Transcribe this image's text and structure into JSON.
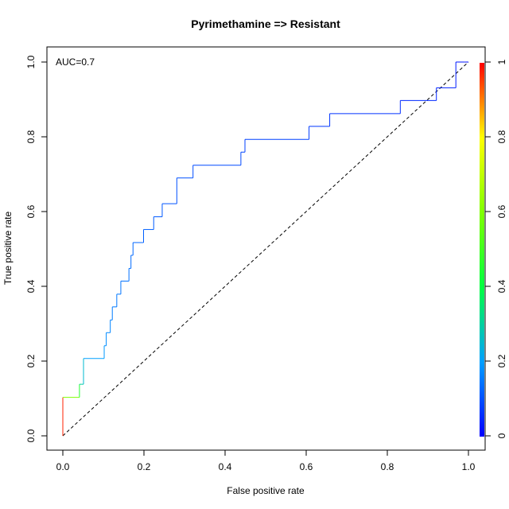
{
  "chart_data": {
    "type": "line",
    "title": "Pyrimethamine => Resistant",
    "xlabel": "False positive rate",
    "ylabel": "True positive rate",
    "xlim": [
      0,
      1
    ],
    "ylim": [
      0,
      1
    ],
    "x_ticks": [
      "0.0",
      "0.2",
      "0.4",
      "0.6",
      "0.8",
      "1.0"
    ],
    "y_ticks": [
      "0.0",
      "0.2",
      "0.4",
      "0.6",
      "0.8",
      "1.0"
    ],
    "annotation": "AUC=0.7",
    "grid": false,
    "legend": "none",
    "diagonal_reference": true,
    "colorbar": {
      "range": [
        0,
        1
      ],
      "ticks": [
        "0",
        "0.2",
        "0.4",
        "0.6",
        "0.8",
        "1"
      ],
      "colormap": "rainbow"
    },
    "series": [
      {
        "x": [
          0.0,
          0.0,
          0.0,
          0.041,
          0.041,
          0.051,
          0.051,
          0.102,
          0.102,
          0.107,
          0.107,
          0.117,
          0.117,
          0.122,
          0.122,
          0.133,
          0.133,
          0.143,
          0.143,
          0.163,
          0.163,
          0.168,
          0.168,
          0.173,
          0.173,
          0.199,
          0.199,
          0.224,
          0.224,
          0.245,
          0.245,
          0.281,
          0.281,
          0.321,
          0.321,
          0.439,
          0.439,
          0.449,
          0.449,
          0.607,
          0.607,
          0.658,
          0.658,
          0.832,
          0.832,
          0.921,
          0.921,
          0.969,
          0.969,
          0.992,
          1.0
        ],
        "y": [
          0.0,
          0.103,
          0.103,
          0.103,
          0.138,
          0.138,
          0.207,
          0.207,
          0.241,
          0.241,
          0.276,
          0.276,
          0.31,
          0.31,
          0.345,
          0.345,
          0.379,
          0.379,
          0.414,
          0.414,
          0.448,
          0.448,
          0.483,
          0.483,
          0.517,
          0.517,
          0.552,
          0.552,
          0.586,
          0.586,
          0.621,
          0.621,
          0.69,
          0.69,
          0.724,
          0.724,
          0.759,
          0.759,
          0.793,
          0.793,
          0.828,
          0.828,
          0.862,
          0.862,
          0.897,
          0.897,
          0.931,
          0.931,
          1.0,
          1.0,
          1.0
        ],
        "cutoff": [
          1.0,
          0.95,
          0.6,
          0.6,
          0.3,
          0.3,
          0.2,
          0.2,
          0.18,
          0.18,
          0.17,
          0.17,
          0.16,
          0.16,
          0.15,
          0.15,
          0.15,
          0.15,
          0.14,
          0.14,
          0.14,
          0.14,
          0.13,
          0.13,
          0.13,
          0.12,
          0.12,
          0.12,
          0.11,
          0.11,
          0.11,
          0.1,
          0.1,
          0.1,
          0.09,
          0.09,
          0.09,
          0.08,
          0.08,
          0.08,
          0.07,
          0.07,
          0.06,
          0.06,
          0.05,
          0.05,
          0.04,
          0.04,
          0.03,
          0.02,
          0.0
        ]
      }
    ]
  }
}
